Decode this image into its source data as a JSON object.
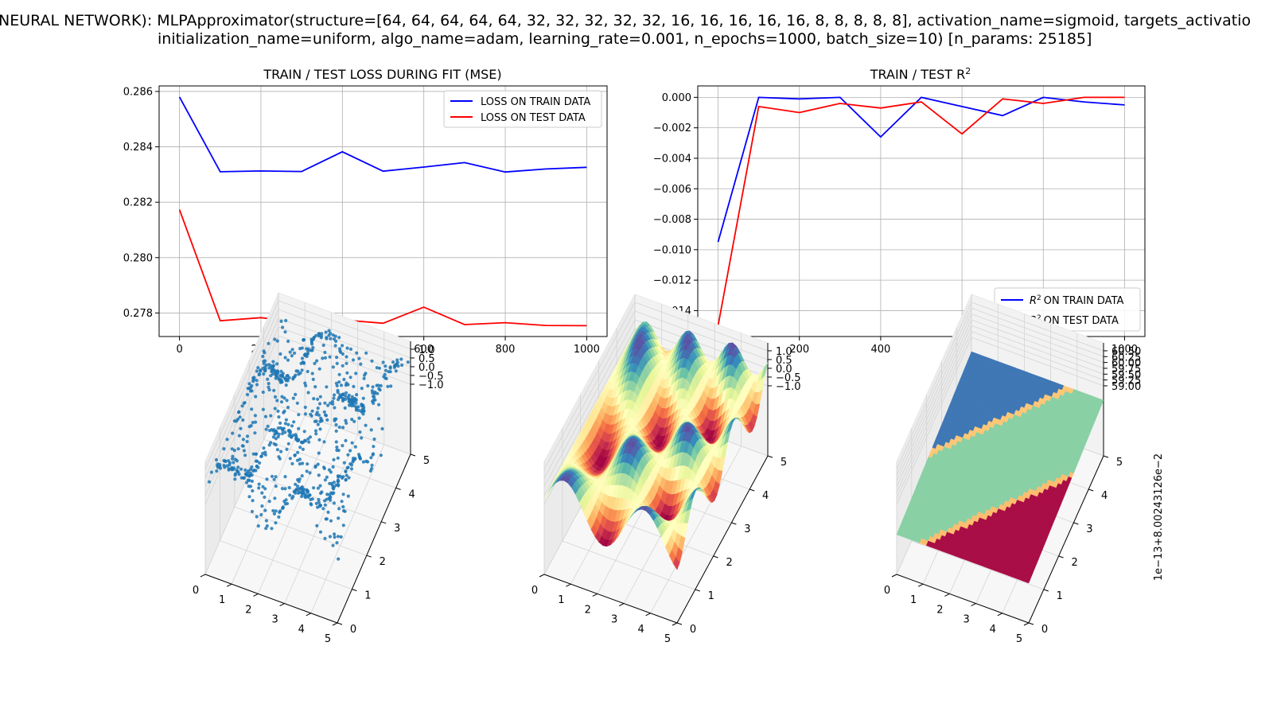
{
  "suptitle": {
    "line1": "NEURAL NETWORK): MLPApproximator(structure=[64, 64, 64, 64, 64, 32, 32, 32, 32, 32, 16, 16, 16, 16, 16, 8, 8, 8, 8, 8], activation_name=sigmoid, targets_activatio",
    "line2": "initialization_name=uniform, algo_name=adam, learning_rate=0.001, n_epochs=1000, batch_size=10) [n_params: 25185]"
  },
  "colors": {
    "train": "#0000ff",
    "test": "#ff0000",
    "scatter": "#1f77b4",
    "grid": "#b0b0b0"
  },
  "chart_data": [
    {
      "type": "line",
      "title": "TRAIN / TEST LOSS DURING FIT (MSE)",
      "x": [
        0,
        100,
        200,
        300,
        400,
        500,
        600,
        700,
        800,
        900,
        1000
      ],
      "xticks": [
        "0",
        "200",
        "400",
        "600",
        "800",
        "1000"
      ],
      "xlim": [
        -50,
        1050
      ],
      "ylim": [
        0.27715,
        0.2862
      ],
      "yticks": [
        "0.278",
        "0.280",
        "0.282",
        "0.284",
        "0.286"
      ],
      "grid": true,
      "legend_position": "top-right",
      "series": [
        {
          "name": "LOSS ON TRAIN DATA",
          "color": "#0000ff",
          "values": [
            0.2858,
            0.2831,
            0.28313,
            0.28311,
            0.28382,
            0.28312,
            0.28327,
            0.28343,
            0.28309,
            0.2832,
            0.28326
          ]
        },
        {
          "name": "LOSS ON TEST DATA",
          "color": "#ff0000",
          "values": [
            0.28173,
            0.27772,
            0.27783,
            0.27766,
            0.27775,
            0.27763,
            0.27821,
            0.27758,
            0.27765,
            0.27755,
            0.27754
          ]
        }
      ]
    },
    {
      "type": "line",
      "title": "TRAIN / TEST R",
      "title_sup": "2",
      "x": [
        0,
        100,
        200,
        300,
        400,
        500,
        600,
        700,
        800,
        900,
        1000
      ],
      "xticks": [
        "0",
        "200",
        "400",
        "600",
        "800",
        "1000"
      ],
      "xlim": [
        -50,
        1050
      ],
      "ylim": [
        -0.0157,
        0.00075
      ],
      "yticks": [
        "0.000",
        "−0.002",
        "−0.004",
        "−0.006",
        "−0.008",
        "−0.010",
        "−0.012",
        "−0.014"
      ],
      "grid": true,
      "legend_position": "bottom-right",
      "series": [
        {
          "name": "ON TRAIN DATA",
          "name_prefix": "R",
          "name_sup": "2",
          "color": "#0000ff",
          "values": [
            -0.0095,
            0.0,
            -0.0001,
            0.0,
            -0.0026,
            0.0,
            -0.0006,
            -0.0012,
            0.0,
            -0.0003,
            -0.0005
          ]
        },
        {
          "name": "ON TEST DATA",
          "name_prefix": "R",
          "name_sup": "2",
          "color": "#ff0000",
          "values": [
            -0.015,
            -0.0006,
            -0.001,
            -0.0004,
            -0.0007,
            -0.0003,
            -0.0024,
            -0.0001,
            -0.0004,
            0.0,
            0.0
          ]
        }
      ]
    },
    {
      "type": "scatter3d",
      "x_ticks": [
        "0",
        "1",
        "2",
        "3",
        "4",
        "5"
      ],
      "y_ticks": [
        "0",
        "1",
        "2",
        "3",
        "4",
        "5"
      ],
      "z_ticks": [
        "1.0",
        "0.5",
        "0.0",
        "−0.5",
        "−1.0"
      ],
      "xlim": [
        0,
        5
      ],
      "ylim": [
        0,
        5
      ],
      "zlim": [
        -1.2,
        1.2
      ],
      "n_points": 800,
      "point_color": "#1f77b4"
    },
    {
      "type": "surface3d",
      "x_ticks": [
        "0",
        "1",
        "2",
        "3",
        "4",
        "5"
      ],
      "y_ticks": [
        "0",
        "1",
        "2",
        "3",
        "4",
        "5"
      ],
      "z_ticks": [
        "1.0",
        "0.5",
        "0.0",
        "−0.5",
        "−1.0"
      ],
      "xlim": [
        0,
        5
      ],
      "ylim": [
        0,
        5
      ],
      "zlim": [
        -1,
        1
      ],
      "colormap": "Spectral"
    },
    {
      "type": "surface3d",
      "x_ticks": [
        "0",
        "1",
        "2",
        "3",
        "4",
        "5"
      ],
      "y_ticks": [
        "0",
        "1",
        "2",
        "3",
        "4",
        "5"
      ],
      "z_ticks": [
        "60.50",
        "60.25",
        "60.00",
        "59.75",
        "59.50",
        "59.25",
        "59.00"
      ],
      "zlim": [
        59.0,
        60.5
      ],
      "z_offset_label": "1e−13+8.00243126e−2",
      "colormap": "Spectral"
    }
  ]
}
